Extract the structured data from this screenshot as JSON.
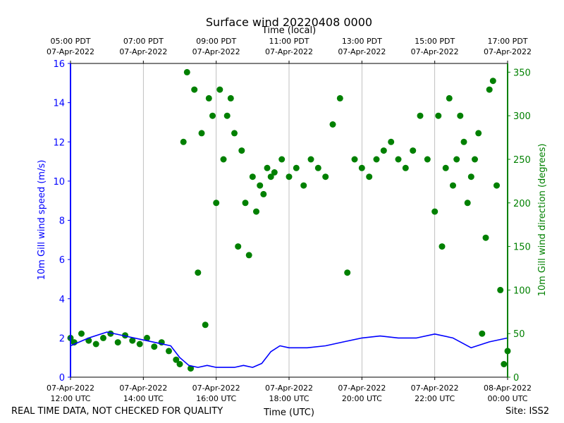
{
  "chart_data": {
    "type": "line+scatter",
    "title": "Surface wind 20220408 0000",
    "top_axis_label": "Time (local)",
    "xlabel": "Time (UTC)",
    "ylabel_left": "10m Gill wind speed (m/s)",
    "ylabel_right": "10m Gill wind direction (degrees)",
    "ylim_left": [
      0,
      16
    ],
    "ylim_right": [
      0,
      360
    ],
    "xlim_hours_utc": [
      12,
      24
    ],
    "left_ticks": [
      0,
      2,
      4,
      6,
      8,
      10,
      12,
      14,
      16
    ],
    "right_ticks": [
      0,
      50,
      100,
      150,
      200,
      250,
      300,
      350
    ],
    "bottom_ticks": [
      {
        "h": 12,
        "line1": "07-Apr-2022",
        "line2": "12:00 UTC"
      },
      {
        "h": 14,
        "line1": "07-Apr-2022",
        "line2": "14:00 UTC"
      },
      {
        "h": 16,
        "line1": "07-Apr-2022",
        "line2": "16:00 UTC"
      },
      {
        "h": 18,
        "line1": "07-Apr-2022",
        "line2": "18:00 UTC"
      },
      {
        "h": 20,
        "line1": "07-Apr-2022",
        "line2": "20:00 UTC"
      },
      {
        "h": 22,
        "line1": "07-Apr-2022",
        "line2": "22:00 UTC"
      },
      {
        "h": 24,
        "line1": "08-Apr-2022",
        "line2": "00:00 UTC"
      }
    ],
    "top_ticks": [
      {
        "h": 12,
        "line1": "05:00 PDT",
        "line2": "07-Apr-2022"
      },
      {
        "h": 14,
        "line1": "07:00 PDT",
        "line2": "07-Apr-2022"
      },
      {
        "h": 16,
        "line1": "09:00 PDT",
        "line2": "07-Apr-2022"
      },
      {
        "h": 18,
        "line1": "11:00 PDT",
        "line2": "07-Apr-2022"
      },
      {
        "h": 20,
        "line1": "13:00 PDT",
        "line2": "07-Apr-2022"
      },
      {
        "h": 22,
        "line1": "15:00 PDT",
        "line2": "07-Apr-2022"
      },
      {
        "h": 24,
        "line1": "17:00 PDT",
        "line2": "07-Apr-2022"
      }
    ],
    "grid": "vertical",
    "colors": {
      "speed": "#0000ff",
      "direction": "#008000",
      "grid": "#b0b0b0"
    },
    "speed_series": {
      "name": "10m Gill wind speed",
      "hours_utc": [
        12.0,
        12.5,
        13.0,
        13.5,
        14.0,
        14.5,
        14.75,
        15.0,
        15.25,
        15.5,
        15.75,
        16.0,
        16.25,
        16.5,
        16.75,
        17.0,
        17.25,
        17.5,
        17.75,
        18.0,
        18.5,
        19.0,
        19.5,
        20.0,
        20.5,
        21.0,
        21.5,
        22.0,
        22.5,
        23.0,
        23.5,
        24.0
      ],
      "values": [
        1.6,
        2.0,
        2.3,
        2.1,
        1.9,
        1.7,
        1.6,
        1.0,
        0.6,
        0.5,
        0.6,
        0.5,
        0.5,
        0.5,
        0.6,
        0.5,
        0.7,
        1.3,
        1.6,
        1.5,
        1.5,
        1.6,
        1.8,
        2.0,
        2.1,
        2.0,
        2.0,
        2.2,
        2.0,
        1.5,
        1.8,
        2.0
      ]
    },
    "direction_series": {
      "name": "10m Gill wind direction",
      "hours_utc": [
        12.0,
        12.1,
        12.3,
        12.5,
        12.7,
        12.9,
        13.1,
        13.3,
        13.5,
        13.7,
        13.9,
        14.1,
        14.3,
        14.5,
        14.7,
        14.9,
        15.0,
        15.1,
        15.2,
        15.3,
        15.4,
        15.5,
        15.6,
        15.7,
        15.8,
        15.9,
        16.0,
        16.1,
        16.2,
        16.3,
        16.4,
        16.5,
        16.6,
        16.7,
        16.8,
        16.9,
        17.0,
        17.1,
        17.2,
        17.3,
        17.4,
        17.5,
        17.6,
        17.8,
        18.0,
        18.2,
        18.4,
        18.6,
        18.8,
        19.0,
        19.2,
        19.4,
        19.6,
        19.8,
        20.0,
        20.2,
        20.4,
        20.6,
        20.8,
        21.0,
        21.2,
        21.4,
        21.6,
        21.8,
        22.0,
        22.1,
        22.2,
        22.3,
        22.4,
        22.5,
        22.6,
        22.7,
        22.8,
        22.9,
        23.0,
        23.1,
        23.2,
        23.3,
        23.4,
        23.5,
        23.6,
        23.7,
        23.8,
        23.9,
        24.0
      ],
      "values": [
        45,
        40,
        50,
        42,
        38,
        45,
        50,
        40,
        48,
        42,
        38,
        45,
        35,
        40,
        30,
        20,
        15,
        270,
        350,
        10,
        330,
        120,
        280,
        60,
        320,
        300,
        200,
        330,
        250,
        300,
        320,
        280,
        150,
        260,
        200,
        140,
        230,
        190,
        220,
        210,
        240,
        230,
        235,
        250,
        230,
        240,
        220,
        250,
        240,
        230,
        290,
        320,
        120,
        250,
        240,
        230,
        250,
        260,
        270,
        250,
        240,
        260,
        300,
        250,
        190,
        300,
        150,
        240,
        320,
        220,
        250,
        300,
        270,
        200,
        230,
        250,
        280,
        50,
        160,
        330,
        340,
        220,
        100,
        15,
        30
      ]
    }
  },
  "footer": {
    "left_note": "REAL TIME DATA, NOT CHECKED FOR QUALITY",
    "site": "Site: ISS2"
  }
}
